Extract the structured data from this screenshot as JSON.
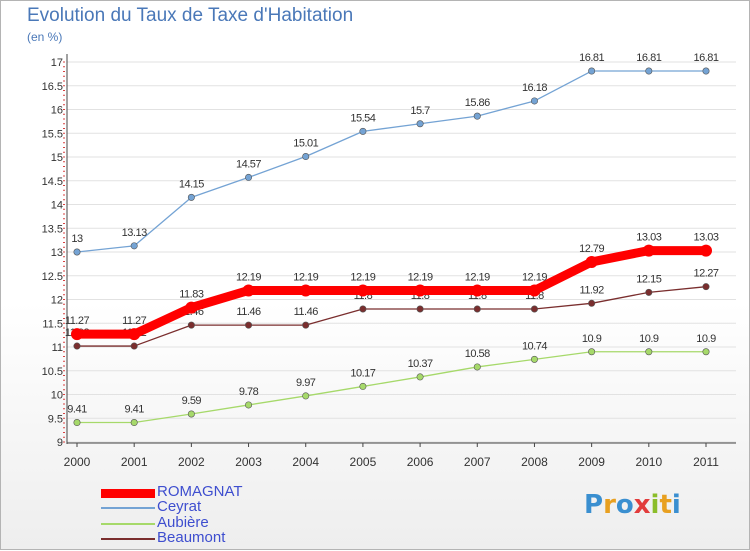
{
  "title": "Evolution du Taux de Taxe d'Habitation",
  "subtitle": "(en %)",
  "logo_text": "Proxiti",
  "logo_colors": [
    "#3a8fd0",
    "#e8a020",
    "#3a8fd0",
    "#e23c3c",
    "#8bbd2a",
    "#e8a020",
    "#3a8fd0"
  ],
  "chart_data": {
    "type": "line",
    "title": "Evolution du Taux de Taxe d'Habitation",
    "ylabel": "(en %)",
    "xlabel": "",
    "x": [
      "2000",
      "2001",
      "2002",
      "2003",
      "2004",
      "2005",
      "2006",
      "2007",
      "2008",
      "2009",
      "2010",
      "2011"
    ],
    "ylim": [
      9,
      17
    ],
    "yticks": [
      "9",
      "9.5",
      "10",
      "10.5",
      "11",
      "11.5",
      "12",
      "12.5",
      "13",
      "13.5",
      "14",
      "14.5",
      "15",
      "15.5",
      "16",
      "16.5",
      "17"
    ],
    "grid": "horizontal",
    "legend_position": "bottom-left",
    "series": [
      {
        "name": "ROMAGNAT",
        "color": "#ff0000",
        "emphasis": true,
        "values": [
          11.27,
          11.27,
          11.83,
          12.19,
          12.19,
          12.19,
          12.19,
          12.19,
          12.19,
          12.79,
          13.03,
          13.03
        ],
        "labels": [
          "11.27",
          "11.27",
          "11.83",
          "12.19",
          "12.19",
          "12.19",
          "12.19",
          "12.19",
          "12.19",
          "12.79",
          "13.03",
          "13.03"
        ]
      },
      {
        "name": "Ceyrat",
        "color": "#74a3d4",
        "values": [
          13,
          13.13,
          14.15,
          14.57,
          15.01,
          15.54,
          15.7,
          15.86,
          16.18,
          16.81,
          16.81,
          16.81
        ],
        "labels": [
          "13",
          "13.13",
          "14.15",
          "14.57",
          "15.01",
          "15.54",
          "15.7",
          "15.86",
          "16.18",
          "16.81",
          "16.81",
          "16.81"
        ]
      },
      {
        "name": "Aubière",
        "color": "#a6d96a",
        "values": [
          9.41,
          9.41,
          9.59,
          9.78,
          9.97,
          10.17,
          10.37,
          10.58,
          10.74,
          10.9,
          10.9,
          10.9
        ],
        "labels": [
          "9.41",
          "9.41",
          "9.59",
          "9.78",
          "9.97",
          "10.17",
          "10.37",
          "10.58",
          "10.74",
          "10.9",
          "10.9",
          "10.9"
        ]
      },
      {
        "name": "Beaumont",
        "color": "#7a2e2e",
        "values": [
          11.02,
          11.02,
          11.46,
          11.46,
          11.46,
          11.8,
          11.8,
          11.8,
          11.8,
          11.92,
          12.15,
          12.27
        ],
        "labels": [
          "11.02",
          "11.02",
          "11.46",
          "11.46",
          "11.46",
          "11.8",
          "11.8",
          "11.8",
          "11.8",
          "11.92",
          "12.15",
          "12.27"
        ]
      }
    ]
  }
}
